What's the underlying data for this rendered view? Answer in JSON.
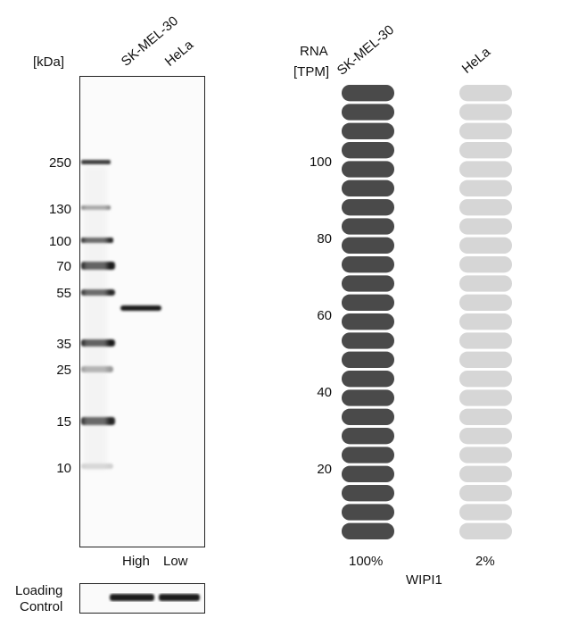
{
  "western_blot": {
    "unit_label": "[kDa]",
    "lanes": [
      "SK-MEL-30",
      "HeLa"
    ],
    "lane_levels": [
      "High",
      "Low"
    ],
    "markers": [
      "250",
      "130",
      "100",
      "70",
      "55",
      "35",
      "25",
      "15",
      "10"
    ],
    "loading_control_label": [
      "Loading",
      "Control"
    ]
  },
  "chart_data": {
    "type": "bar",
    "ylabel": [
      "RNA",
      "[TPM]"
    ],
    "categories": [
      "SK-MEL-30",
      "HeLa"
    ],
    "values_percent": [
      100,
      2
    ],
    "value_labels": [
      "100%",
      "2%"
    ],
    "ytick_labels": [
      "20",
      "40",
      "60",
      "80",
      "100"
    ],
    "ytick_values": [
      20,
      40,
      60,
      80,
      100
    ],
    "ylim": [
      0,
      120
    ],
    "segments": 24,
    "xlabel": "WIPI1",
    "colors": {
      "high": "#4a4a4a",
      "low": "#d6d6d6"
    }
  }
}
